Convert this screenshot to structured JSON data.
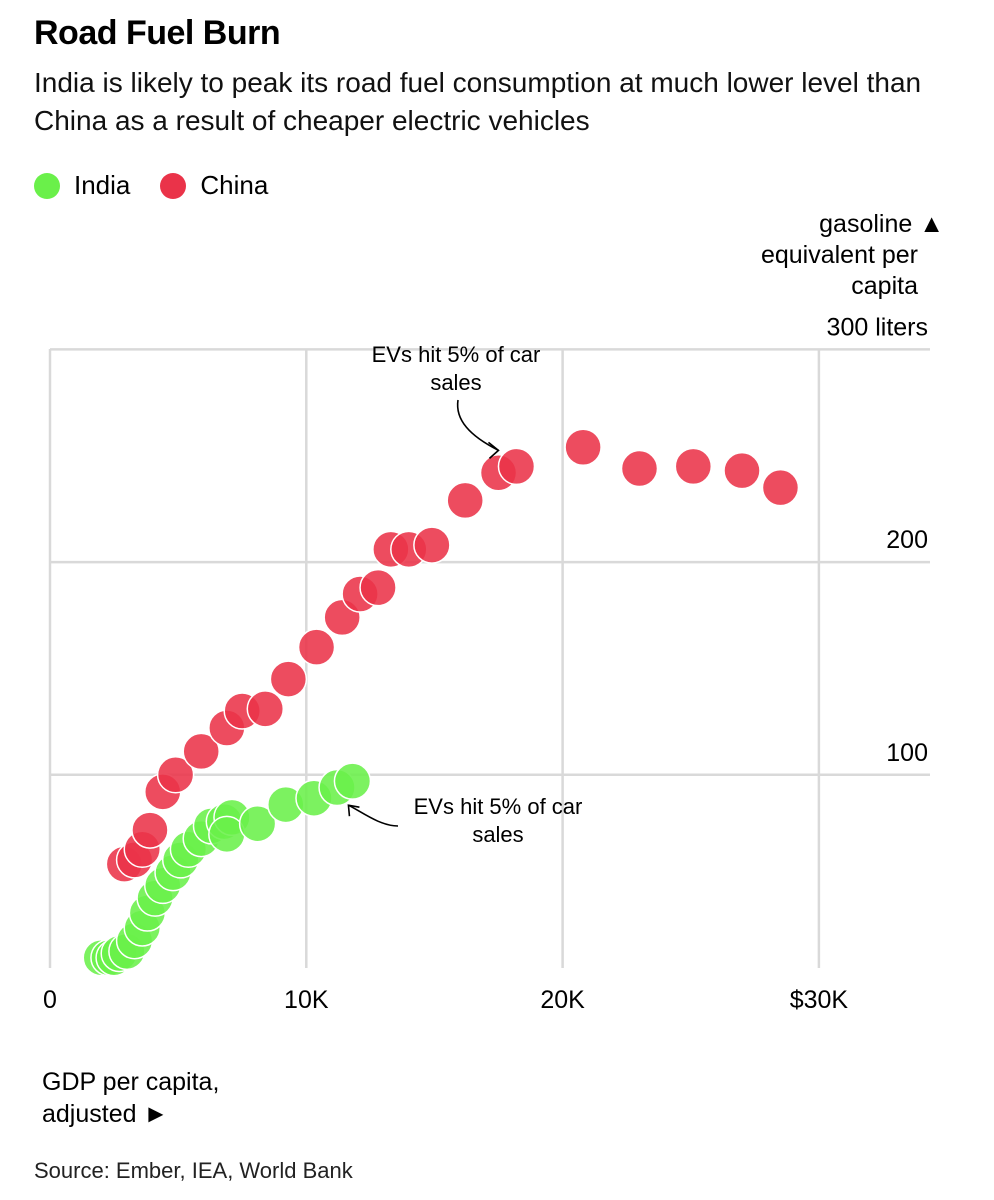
{
  "title": "Road Fuel Burn",
  "subtitle": "India is likely to peak its road fuel consumption at much lower level than China as a result of cheaper electric vehicles",
  "legend": [
    {
      "label": "India",
      "color": "#6af04a"
    },
    {
      "label": "China",
      "color": "#ea3349"
    }
  ],
  "y_axis_title_lines": [
    "gasoline",
    "equivalent per",
    "capita"
  ],
  "y_axis_arrow": "▲",
  "x_axis_title_lines": [
    "GDP per capita,",
    "adjusted ►"
  ],
  "source": "Source: Ember, IEA, World Bank",
  "chart_data": {
    "type": "scatter",
    "title": "Road Fuel Burn",
    "xlabel": "GDP per capita, adjusted",
    "ylabel": "gasoline equivalent per capita",
    "xlim": [
      0,
      34000
    ],
    "ylim": [
      -10,
      300
    ],
    "x_ticks": [
      {
        "value": 0,
        "label": "0"
      },
      {
        "value": 10000,
        "label": "10K"
      },
      {
        "value": 20000,
        "label": "20K"
      },
      {
        "value": 30000,
        "label": "$30K"
      }
    ],
    "y_ticks": [
      {
        "value": 100,
        "label": "100"
      },
      {
        "value": 200,
        "label": "200"
      },
      {
        "value": 300,
        "label": "300 liters"
      }
    ],
    "grid": true,
    "legend_position": "top-left",
    "series": [
      {
        "name": "China",
        "color": "#ea3349",
        "x": [
          2900,
          3300,
          3600,
          3900,
          4400,
          4900,
          5900,
          6900,
          7500,
          8400,
          9300,
          10400,
          11400,
          12100,
          12800,
          13300,
          14000,
          14900,
          16200,
          17500,
          18200,
          20800,
          23000,
          25100,
          27000,
          28500
        ],
        "y": [
          58,
          60,
          65,
          74,
          92,
          100,
          111,
          122,
          130,
          131,
          145,
          160,
          174,
          185,
          188,
          206,
          206,
          208,
          229,
          242,
          245,
          254,
          244,
          245,
          243,
          235
        ]
      },
      {
        "name": "India",
        "color": "#6af04a",
        "x": [
          2000,
          2300,
          2500,
          2700,
          3000,
          3300,
          3600,
          3800,
          4100,
          4400,
          4800,
          5100,
          5400,
          5900,
          6300,
          6800,
          7100,
          6900,
          8100,
          9200,
          10300,
          11200,
          11800
        ],
        "y": [
          14,
          14,
          14,
          16,
          17,
          22,
          28,
          35,
          42,
          48,
          54,
          60,
          65,
          70,
          76,
          78,
          80,
          72,
          77,
          86,
          89,
          94,
          97
        ]
      }
    ],
    "annotations": [
      {
        "lines": [
          "EVs hit 5% of car",
          "sales"
        ],
        "series": "China",
        "x": 18200,
        "y": 245
      },
      {
        "lines": [
          "EVs hit 5% of car",
          "sales"
        ],
        "series": "India",
        "x": 11800,
        "y": 97
      }
    ]
  }
}
